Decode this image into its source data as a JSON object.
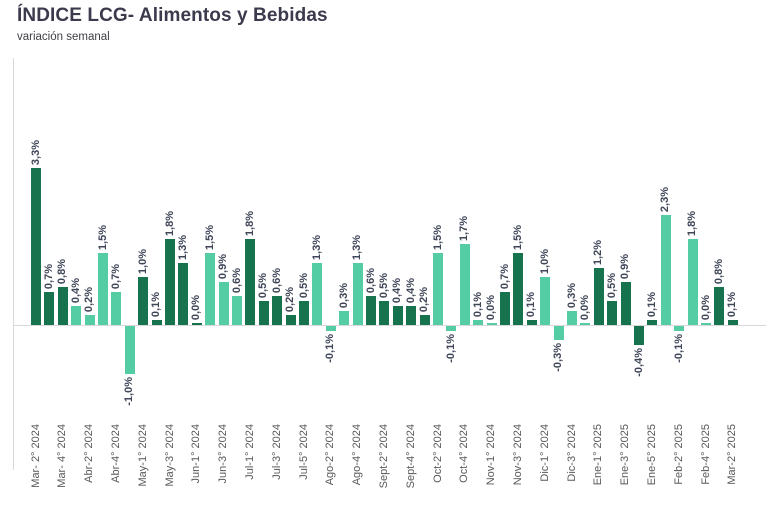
{
  "title": "ÍNDICE LCG- Alimentos y Bebidas",
  "subtitle": "variación semanal",
  "colors": {
    "dark_green": "#17734d",
    "light_green": "#55cda4",
    "value_label_text": "#3f4658",
    "axis_text": "#595959",
    "axis_line": "#d9d9d9",
    "title_text": "#3b3b4d"
  },
  "chart_data": {
    "type": "bar",
    "title": "ÍNDICE LCG- Alimentos y Bebidas",
    "subtitle": "variación semanal",
    "unit": "%",
    "xlabel": "",
    "ylabel": "",
    "ylim": [
      -1.2,
      3.5
    ],
    "grid": false,
    "legend": "none",
    "value_labels": "rotated 90° above bars (below for negatives)",
    "x_tick_labels_visible": [
      "Mar- 2° 2024",
      "Mar- 4° 2024",
      "Abr-2° 2024",
      "Abr-4° 2024",
      "May-1° 2024",
      "May-3° 2024",
      "Jun-1° 2024",
      "Jun-3° 2024",
      "Jul-1° 2024",
      "Jul-3° 2024",
      "Jul-5° 2024",
      "Ago-2° 2024",
      "Ago-4° 2024",
      "Sept-2° 2024",
      "Sept-4° 2024",
      "Oct-2° 2024",
      "Oct-4° 2024",
      "Nov-1° 2024",
      "Nov-3° 2024",
      "Dic-1° 2024",
      "Dic-3° 2024",
      "Ene-1° 2025",
      "Ene-3° 2025",
      "Ene-5° 2025",
      "Feb-2° 2025",
      "Feb-4° 2025",
      "Mar-2° 2025"
    ],
    "bars": [
      {
        "value": 3.3,
        "display": "3,3%",
        "axis_label": "Mar- 2° 2024",
        "shade": "dark"
      },
      {
        "value": 0.7,
        "display": "0,7%",
        "axis_label": null,
        "shade": "dark"
      },
      {
        "value": 0.8,
        "display": "0,8%",
        "axis_label": "Mar- 4° 2024",
        "shade": "dark"
      },
      {
        "value": 0.4,
        "display": "0,4%",
        "axis_label": null,
        "shade": "light"
      },
      {
        "value": 0.2,
        "display": "0,2%",
        "axis_label": "Abr-2° 2024",
        "shade": "light"
      },
      {
        "value": 1.5,
        "display": "1,5%",
        "axis_label": null,
        "shade": "light"
      },
      {
        "value": 0.7,
        "display": "0,7%",
        "axis_label": "Abr-4° 2024",
        "shade": "light"
      },
      {
        "value": -1.0,
        "display": "-1,0%",
        "axis_label": null,
        "shade": "light"
      },
      {
        "value": 1.0,
        "display": "1,0%",
        "axis_label": "May-1° 2024",
        "shade": "dark"
      },
      {
        "value": 0.1,
        "display": "0,1%",
        "axis_label": null,
        "shade": "dark"
      },
      {
        "value": 1.8,
        "display": "1,8%",
        "axis_label": "May-3° 2024",
        "shade": "dark"
      },
      {
        "value": 1.3,
        "display": "1,3%",
        "axis_label": null,
        "shade": "dark"
      },
      {
        "value": 0.0,
        "display": "0,0%",
        "axis_label": "Jun-1° 2024",
        "shade": "dark"
      },
      {
        "value": 1.5,
        "display": "1,5%",
        "axis_label": null,
        "shade": "light"
      },
      {
        "value": 0.9,
        "display": "0,9%",
        "axis_label": "Jun-3° 2024",
        "shade": "light"
      },
      {
        "value": 0.6,
        "display": "0,6%",
        "axis_label": null,
        "shade": "light"
      },
      {
        "value": 1.8,
        "display": "1,8%",
        "axis_label": "Jul-1° 2024",
        "shade": "dark"
      },
      {
        "value": 0.5,
        "display": "0,5%",
        "axis_label": null,
        "shade": "dark"
      },
      {
        "value": 0.6,
        "display": "0,6%",
        "axis_label": "Jul-3° 2024",
        "shade": "dark"
      },
      {
        "value": 0.2,
        "display": "0,2%",
        "axis_label": null,
        "shade": "dark"
      },
      {
        "value": 0.5,
        "display": "0,5%",
        "axis_label": "Jul-5° 2024",
        "shade": "dark"
      },
      {
        "value": 1.3,
        "display": "1,3%",
        "axis_label": null,
        "shade": "light"
      },
      {
        "value": -0.1,
        "display": "-0,1%",
        "axis_label": "Ago-2° 2024",
        "shade": "light"
      },
      {
        "value": 0.3,
        "display": "0,3%",
        "axis_label": null,
        "shade": "light"
      },
      {
        "value": 1.3,
        "display": "1,3%",
        "axis_label": "Ago-4° 2024",
        "shade": "light"
      },
      {
        "value": 0.6,
        "display": "0,6%",
        "axis_label": null,
        "shade": "dark"
      },
      {
        "value": 0.5,
        "display": "0,5%",
        "axis_label": "Sept-2° 2024",
        "shade": "dark"
      },
      {
        "value": 0.4,
        "display": "0,4%",
        "axis_label": null,
        "shade": "dark"
      },
      {
        "value": 0.4,
        "display": "0,4%",
        "axis_label": "Sept-4° 2024",
        "shade": "dark"
      },
      {
        "value": 0.2,
        "display": "0,2%",
        "axis_label": null,
        "shade": "dark"
      },
      {
        "value": 1.5,
        "display": "1,5%",
        "axis_label": "Oct-2° 2024",
        "shade": "light"
      },
      {
        "value": -0.1,
        "display": "-0,1%",
        "axis_label": null,
        "shade": "light"
      },
      {
        "value": 1.7,
        "display": "1,7%",
        "axis_label": "Oct-4° 2024",
        "shade": "light"
      },
      {
        "value": 0.1,
        "display": "0,1%",
        "axis_label": null,
        "shade": "light"
      },
      {
        "value": 0.0,
        "display": "0,0%",
        "axis_label": "Nov-1° 2024",
        "shade": "light"
      },
      {
        "value": 0.7,
        "display": "0,7%",
        "axis_label": null,
        "shade": "dark"
      },
      {
        "value": 1.5,
        "display": "1,5%",
        "axis_label": "Nov-3° 2024",
        "shade": "dark"
      },
      {
        "value": 0.1,
        "display": "0,1%",
        "axis_label": null,
        "shade": "dark"
      },
      {
        "value": 1.0,
        "display": "1,0%",
        "axis_label": "Dic-1° 2024",
        "shade": "light"
      },
      {
        "value": -0.3,
        "display": "-0,3%",
        "axis_label": null,
        "shade": "light"
      },
      {
        "value": 0.3,
        "display": "0,3%",
        "axis_label": "Dic-3° 2024",
        "shade": "light"
      },
      {
        "value": 0.0,
        "display": "0,0%",
        "axis_label": null,
        "shade": "light"
      },
      {
        "value": 1.2,
        "display": "1,2%",
        "axis_label": "Ene-1° 2025",
        "shade": "dark"
      },
      {
        "value": 0.5,
        "display": "0,5%",
        "axis_label": null,
        "shade": "dark"
      },
      {
        "value": 0.9,
        "display": "0,9%",
        "axis_label": "Ene-3° 2025",
        "shade": "dark"
      },
      {
        "value": -0.4,
        "display": "-0,4%",
        "axis_label": null,
        "shade": "dark"
      },
      {
        "value": 0.1,
        "display": "0,1%",
        "axis_label": "Ene-5° 2025",
        "shade": "dark"
      },
      {
        "value": 2.3,
        "display": "2,3%",
        "axis_label": null,
        "shade": "light"
      },
      {
        "value": -0.1,
        "display": "-0,1%",
        "axis_label": "Feb-2° 2025",
        "shade": "light"
      },
      {
        "value": 1.8,
        "display": "1,8%",
        "axis_label": null,
        "shade": "light"
      },
      {
        "value": 0.0,
        "display": "0,0%",
        "axis_label": "Feb-4° 2025",
        "shade": "light"
      },
      {
        "value": 0.8,
        "display": "0,8%",
        "axis_label": null,
        "shade": "dark"
      },
      {
        "value": 0.1,
        "display": "0,1%",
        "axis_label": "Mar-2° 2025",
        "shade": "dark"
      }
    ]
  }
}
